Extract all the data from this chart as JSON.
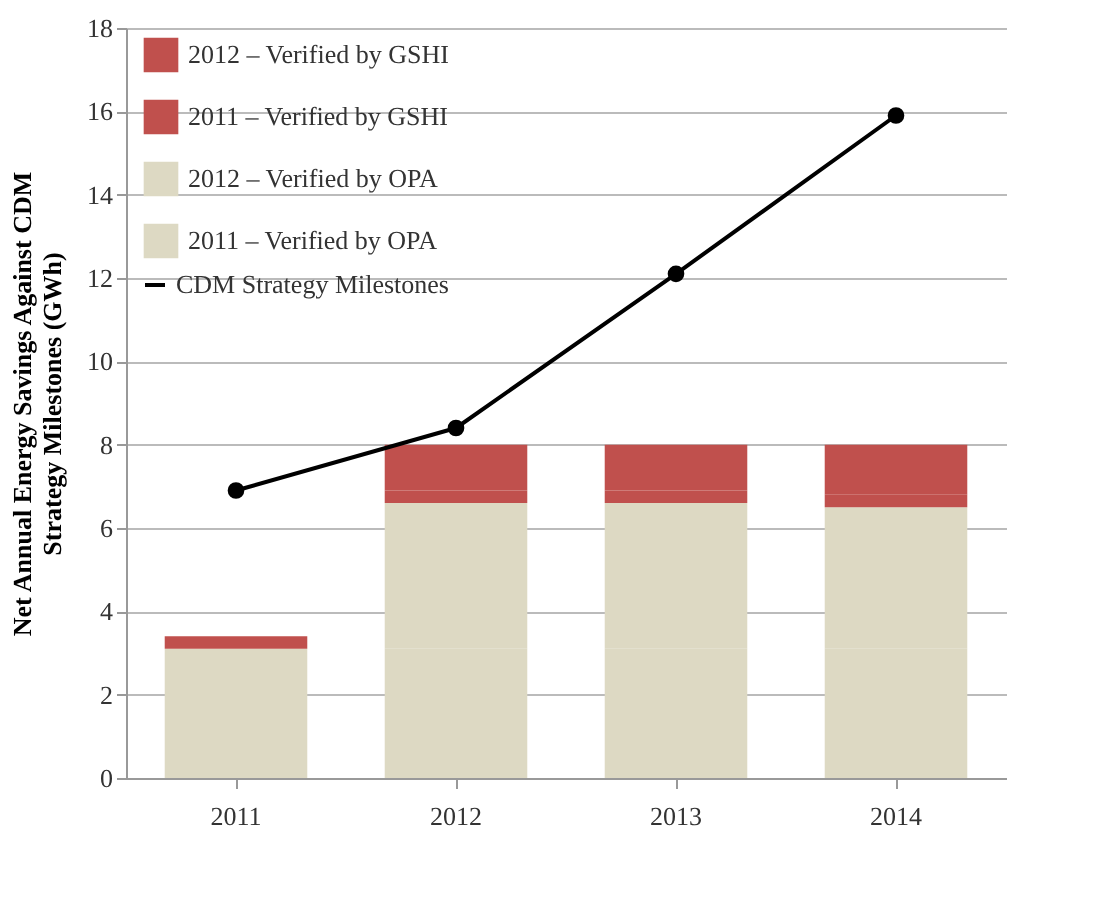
{
  "chart_data": {
    "type": "bar",
    "stacked": true,
    "ylabel": "Net Annual Energy Savings Against CDM Strategy Milestones (GWh)",
    "categories": [
      "2011",
      "2012",
      "2013",
      "2014"
    ],
    "series": [
      {
        "name": "2011 – Verified by OPA",
        "color": "#ddd9c3",
        "values": [
          3.1,
          3.1,
          3.1,
          3.1
        ]
      },
      {
        "name": "2012 – Verified by OPA",
        "color": "#ddd9c3",
        "values": [
          null,
          3.5,
          3.5,
          3.4
        ]
      },
      {
        "name": "2011 – Verified by GSHI",
        "color": "#c0504d",
        "values": [
          0.3,
          0.3,
          0.3,
          0.3
        ]
      },
      {
        "name": "2012 – Verified by GSHI",
        "color": "#c0504d",
        "values": [
          null,
          1.1,
          1.1,
          1.2
        ]
      },
      {
        "name": "CDM Strategy Milestones",
        "type": "line",
        "color": "#000000",
        "marker": "circle",
        "values": [
          6.9,
          8.4,
          12.1,
          15.9
        ]
      }
    ],
    "ylim": [
      0,
      18
    ],
    "yticks": [
      0,
      2,
      4,
      6,
      8,
      10,
      12,
      14,
      16,
      18
    ],
    "grid": "y",
    "legend": "top left"
  }
}
